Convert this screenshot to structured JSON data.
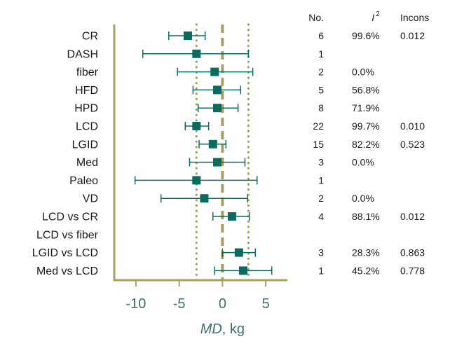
{
  "chart_data": {
    "type": "forest",
    "xlabel_italic": "MD",
    "xlabel_unit": ", kg",
    "x_ticks": [
      -10,
      -5,
      0,
      5
    ],
    "xlim": [
      -12.5,
      7.5
    ],
    "reference_lines": {
      "solid_dashed": 0,
      "dotted": [
        -3,
        3
      ]
    },
    "columns": {
      "no": "No.",
      "i2": "I",
      "i2_sup": "2",
      "incons": "Incons"
    },
    "colors": {
      "marker": "#0b6b5f",
      "axis": "#a89f61",
      "ref": "#a89f61",
      "tick_text": "#3e6f6a"
    },
    "rows": [
      {
        "label": "CR",
        "est": -4.0,
        "lo": -6.2,
        "hi": -2.0,
        "n": "6",
        "i2": "99.6%",
        "incons": "0.012"
      },
      {
        "label": "DASH",
        "est": -3.0,
        "lo": -9.2,
        "hi": 3.0,
        "n": "1",
        "i2": "",
        "incons": ""
      },
      {
        "label": "fiber",
        "est": -0.9,
        "lo": -5.2,
        "hi": 3.5,
        "n": "2",
        "i2": "0.0%",
        "incons": ""
      },
      {
        "label": "HFD",
        "est": -0.6,
        "lo": -3.4,
        "hi": 2.1,
        "n": "5",
        "i2": "56.8%",
        "incons": ""
      },
      {
        "label": "HPD",
        "est": -0.6,
        "lo": -2.8,
        "hi": 1.8,
        "n": "8",
        "i2": "71.9%",
        "incons": ""
      },
      {
        "label": "LCD",
        "est": -3.0,
        "lo": -4.3,
        "hi": -1.6,
        "n": "22",
        "i2": "99.7%",
        "incons": "0.010"
      },
      {
        "label": "LGID",
        "est": -1.1,
        "lo": -2.7,
        "hi": 0.4,
        "n": "15",
        "i2": "82.2%",
        "incons": "0.523"
      },
      {
        "label": "Med",
        "est": -0.6,
        "lo": -3.8,
        "hi": 2.6,
        "n": "3",
        "i2": "0.0%",
        "incons": ""
      },
      {
        "label": "Paleo",
        "est": -3.0,
        "lo": -10.1,
        "hi": 4.0,
        "n": "1",
        "i2": "",
        "incons": ""
      },
      {
        "label": "VD",
        "est": -2.1,
        "lo": -7.1,
        "hi": 2.9,
        "n": "2",
        "i2": "0.0%",
        "incons": ""
      },
      {
        "label": "LCD vs CR",
        "est": 1.1,
        "lo": -1.1,
        "hi": 3.1,
        "n": "4",
        "i2": "88.1%",
        "incons": "0.012"
      },
      {
        "label": "LCD vs fiber",
        "est": null,
        "lo": null,
        "hi": null,
        "n": "",
        "i2": "",
        "incons": ""
      },
      {
        "label": "LGID vs LCD",
        "est": 1.9,
        "lo": 0.0,
        "hi": 3.8,
        "n": "3",
        "i2": "28.3%",
        "incons": "0.863"
      },
      {
        "label": "Med vs LCD",
        "est": 2.4,
        "lo": -0.9,
        "hi": 5.7,
        "n": "1",
        "i2": "45.2%",
        "incons": "0.778"
      }
    ]
  }
}
